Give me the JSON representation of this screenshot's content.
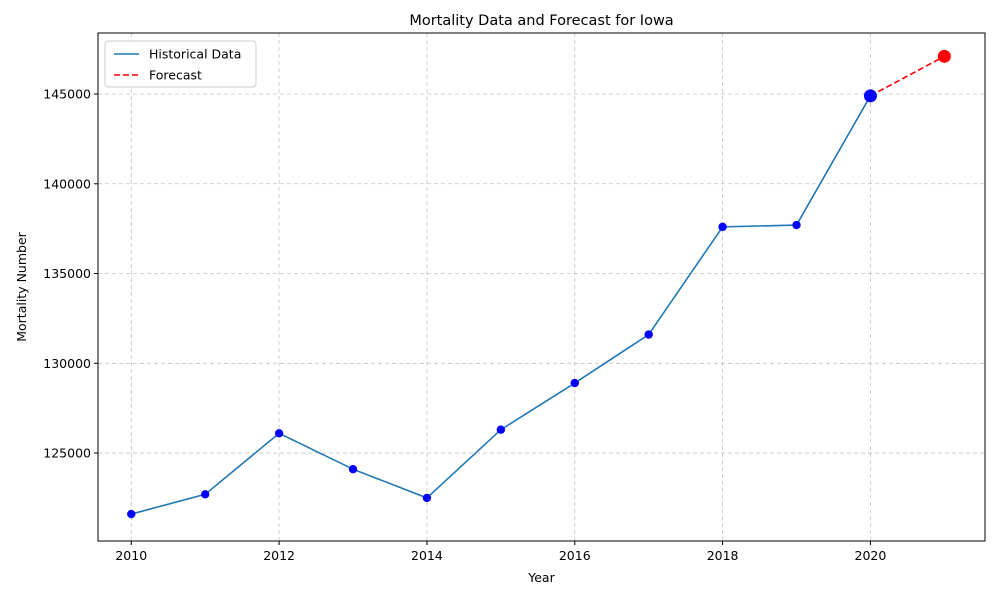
{
  "chart_data": {
    "type": "line",
    "title": "Mortality Data and Forecast for Iowa",
    "xlabel": "Year",
    "ylabel": "Mortality Number",
    "xlim": [
      2009.55,
      2021.55
    ],
    "ylim": [
      120100,
      148400
    ],
    "xticks": [
      2010,
      2012,
      2014,
      2016,
      2018,
      2020
    ],
    "yticks": [
      125000,
      130000,
      135000,
      140000,
      145000
    ],
    "grid": true,
    "legend": {
      "placement": "top-left"
    },
    "series": [
      {
        "name": "Historical Data",
        "style": "solid",
        "color": "#1f77b4",
        "marker_color": "#0000ff",
        "x": [
          2010,
          2011,
          2012,
          2013,
          2014,
          2015,
          2016,
          2017,
          2018,
          2019,
          2020
        ],
        "y": [
          121600,
          122700,
          126100,
          124100,
          122500,
          126300,
          128900,
          131600,
          137600,
          137700,
          144900
        ]
      },
      {
        "name": "Forecast",
        "style": "dashed",
        "color": "#ff0000",
        "marker_color": "#ff0000",
        "x": [
          2020,
          2021
        ],
        "y": [
          144900,
          147100
        ]
      }
    ],
    "highlight_points": [
      {
        "x": 2020,
        "y": 144900,
        "color": "#0000ff"
      },
      {
        "x": 2021,
        "y": 147100,
        "color": "#ff0000"
      }
    ]
  }
}
